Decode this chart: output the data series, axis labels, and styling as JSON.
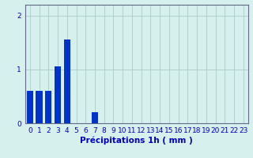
{
  "categories": [
    0,
    1,
    2,
    3,
    4,
    5,
    6,
    7,
    8,
    9,
    10,
    11,
    12,
    13,
    14,
    15,
    16,
    17,
    18,
    19,
    20,
    21,
    22,
    23
  ],
  "values": [
    0.6,
    0.6,
    0.6,
    1.05,
    1.55,
    0.0,
    0.0,
    0.2,
    0.0,
    0.0,
    0.0,
    0.0,
    0.0,
    0.0,
    0.0,
    0.0,
    0.0,
    0.0,
    0.0,
    0.0,
    0.0,
    0.0,
    0.0,
    0.0
  ],
  "bar_color": "#0033cc",
  "bg_color": "#d6f0ee",
  "grid_color": "#aacccc",
  "axis_color": "#0000bb",
  "spine_color": "#666688",
  "xlabel": "Précipitations 1h ( mm )",
  "ylim": [
    0,
    2.2
  ],
  "yticks": [
    0,
    1,
    2
  ],
  "xlabel_fontsize": 7.5,
  "tick_fontsize": 6.5
}
